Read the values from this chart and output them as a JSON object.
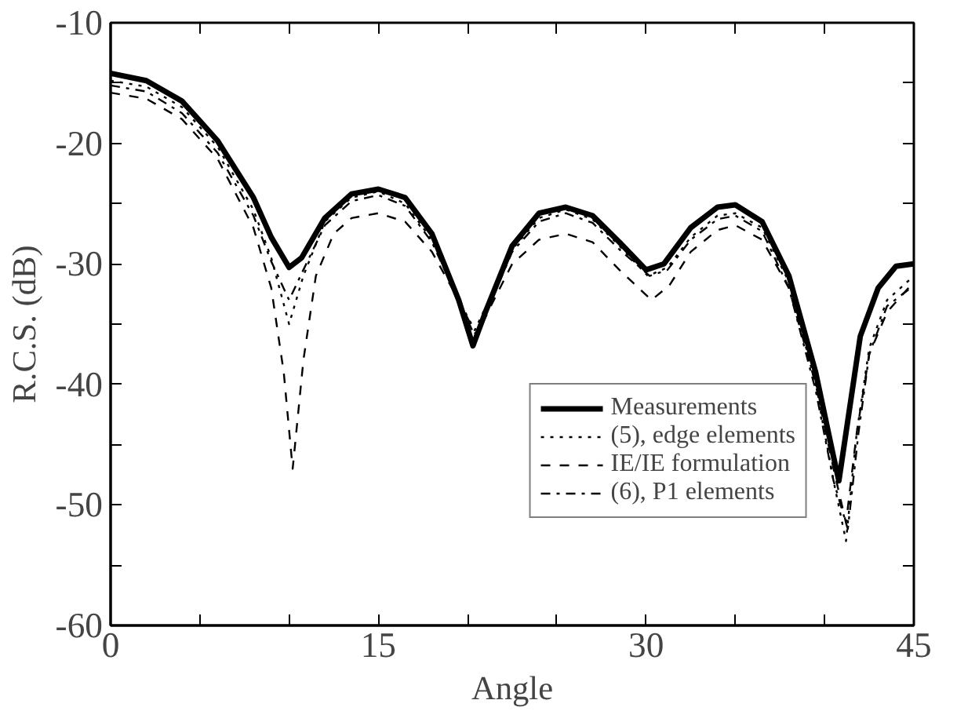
{
  "chart_data": {
    "type": "line",
    "xlabel": "Angle",
    "ylabel": "R.C.S. (dB)",
    "xlim": [
      0,
      45
    ],
    "ylim": [
      -60,
      -10
    ],
    "xticks": [
      0,
      {
        "value": 5,
        "label": null
      },
      {
        "value": 10,
        "label": null
      },
      15,
      {
        "value": 20,
        "label": null
      },
      {
        "value": 25,
        "label": null
      },
      30,
      {
        "value": 35,
        "label": null
      },
      {
        "value": 40,
        "label": null
      },
      45
    ],
    "yticks": [
      -60,
      {
        "value": -55,
        "label": null
      },
      -50,
      {
        "value": -45,
        "label": null
      },
      -40,
      {
        "value": -35,
        "label": null
      },
      -30,
      {
        "value": -25,
        "label": null
      },
      -20,
      {
        "value": -15,
        "label": null
      },
      -10
    ],
    "grid": false,
    "legend": "bottom right",
    "marker": "none",
    "series": [
      {
        "name": "Measurements",
        "color": "#000000",
        "line_style": "solid",
        "x": [
          0,
          2,
          4,
          6,
          8,
          9,
          10,
          10.7,
          12,
          13.5,
          15,
          16.5,
          18,
          19.5,
          20.3,
          21,
          22.5,
          24,
          25.5,
          27,
          28.5,
          30,
          31,
          32.5,
          34,
          35,
          36.5,
          38,
          39.5,
          40.5,
          40.8,
          41.3,
          42,
          43,
          44,
          45
        ],
        "values": [
          -14.2,
          -14.8,
          -16.5,
          -19.8,
          -24.5,
          -27.8,
          -30.3,
          -29.5,
          -26.2,
          -24.2,
          -23.8,
          -24.5,
          -27.5,
          -33,
          -36.8,
          -34,
          -28.5,
          -25.8,
          -25.3,
          -26,
          -28.2,
          -30.5,
          -30,
          -27,
          -25.3,
          -25.1,
          -26.5,
          -31,
          -39,
          -46,
          -48,
          -43,
          -36,
          -32,
          -30.2,
          -30
        ]
      },
      {
        "name": "(5), edge elements",
        "color": "#000000",
        "line_style": "dotted",
        "x": [
          0,
          2,
          4,
          6,
          8,
          9,
          10,
          10.8,
          12,
          13.5,
          15,
          16.5,
          18,
          19.5,
          20.4,
          21.2,
          22.5,
          24,
          25.5,
          27,
          28.5,
          30.1,
          31.2,
          32.5,
          34,
          35,
          36.5,
          38,
          39.5,
          40.5,
          41.2,
          41.8,
          42.5,
          43.5,
          45
        ],
        "values": [
          -14.8,
          -15.3,
          -17,
          -20.3,
          -25.5,
          -29.5,
          -35,
          -31,
          -26.5,
          -24.5,
          -24,
          -25,
          -28,
          -33,
          -35.5,
          -33,
          -28.8,
          -26.2,
          -25.5,
          -26.3,
          -28.5,
          -31,
          -30.3,
          -27.8,
          -26,
          -25.8,
          -27,
          -31.5,
          -40,
          -48,
          -53,
          -44,
          -37,
          -33,
          -31
        ]
      },
      {
        "name": "IE/IE formulation",
        "color": "#000000",
        "line_style": "dashed",
        "x": [
          0,
          2,
          4,
          6,
          8,
          9,
          9.7,
          10.2,
          10.8,
          11.5,
          12.5,
          13.5,
          15,
          16.5,
          18,
          19.5,
          20.5,
          21.3,
          22.5,
          24,
          25.5,
          27,
          28.5,
          30.3,
          31.3,
          32.5,
          34,
          35,
          36.5,
          38,
          39.5,
          40.5,
          41.2,
          41.8,
          42.5,
          43.5,
          45
        ],
        "values": [
          -15.8,
          -16.3,
          -18,
          -21.3,
          -27,
          -32,
          -39,
          -47,
          -38,
          -31,
          -27.5,
          -26.2,
          -25.8,
          -26.5,
          -29,
          -33,
          -36,
          -33.5,
          -30,
          -28,
          -27.5,
          -28.2,
          -30.5,
          -33,
          -31.8,
          -29,
          -27.2,
          -26.8,
          -28,
          -32,
          -40,
          -47,
          -51.5,
          -44,
          -37.5,
          -34,
          -31.5
        ]
      },
      {
        "name": "(6), P1 elements",
        "color": "#000000",
        "line_style": "dashdot",
        "x": [
          0,
          2,
          4,
          6,
          8,
          9,
          10,
          10.8,
          12,
          13.5,
          15,
          16.5,
          18,
          19.5,
          20.4,
          21.2,
          22.5,
          24,
          25.5,
          27,
          28.5,
          30.2,
          31.2,
          32.5,
          34,
          35,
          36.5,
          38,
          39.5,
          40.5,
          41.3,
          41.9,
          42.5,
          43.5,
          45
        ],
        "values": [
          -15.2,
          -15.7,
          -17.5,
          -20.8,
          -26,
          -29.8,
          -33,
          -30.5,
          -26.8,
          -24.8,
          -24.3,
          -25.2,
          -28.2,
          -33,
          -36,
          -33.5,
          -29,
          -26.5,
          -25.8,
          -26.6,
          -28.8,
          -31,
          -30.5,
          -28,
          -26.3,
          -26,
          -27.3,
          -32,
          -40.5,
          -48,
          -52,
          -44,
          -37.5,
          -33.5,
          -31.8
        ]
      }
    ]
  }
}
